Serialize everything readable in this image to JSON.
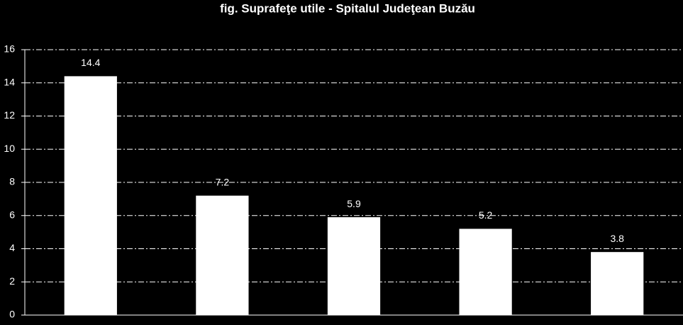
{
  "chart_data": {
    "type": "bar",
    "title": "fig. Suprafeţe utile - Spitalul Judeţean Buzău",
    "categories": [
      null,
      null,
      null,
      null,
      null
    ],
    "values": [
      14.4,
      7.2,
      5.9,
      5.2,
      3.8
    ],
    "color": "#ffffff",
    "ylim": [
      0,
      16
    ],
    "yticks": [
      0,
      2,
      4,
      6,
      8,
      10,
      12,
      14,
      16
    ],
    "grid": true
  }
}
